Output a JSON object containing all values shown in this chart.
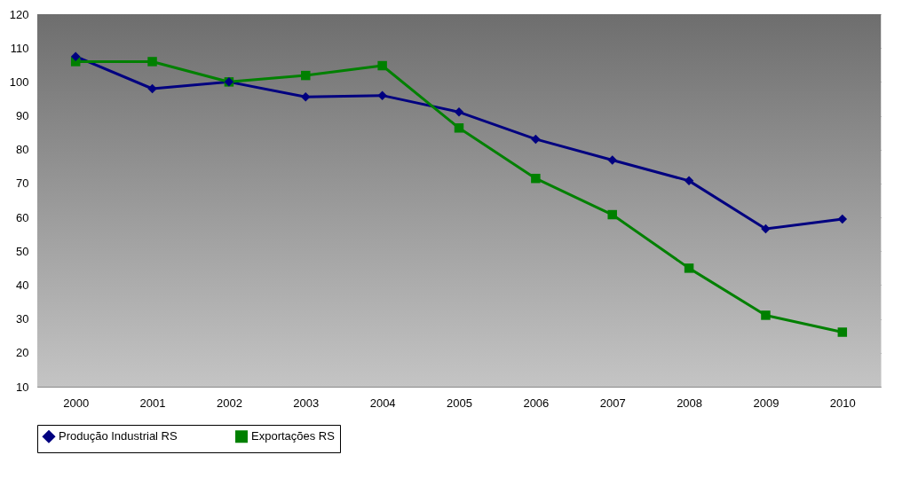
{
  "chart_data": {
    "type": "line",
    "categories": [
      "2000",
      "2001",
      "2002",
      "2003",
      "2004",
      "2005",
      "2006",
      "2007",
      "2008",
      "2009",
      "2010"
    ],
    "series": [
      {
        "name": "Produção Industrial RS",
        "color": "#000080",
        "marker": "diamond",
        "values": [
          107.5,
          98,
          100,
          95.6,
          96,
          91.1,
          83.1,
          76.9,
          70.8,
          56.6,
          59.5
        ]
      },
      {
        "name": "Exportações RS",
        "color": "#008000",
        "marker": "square",
        "values": [
          106,
          106,
          100,
          101.9,
          104.8,
          86.4,
          71.5,
          60.8,
          45,
          31.1,
          26.1
        ]
      }
    ],
    "ylim": [
      10,
      120
    ],
    "yticks": [
      10,
      20,
      30,
      40,
      50,
      60,
      70,
      80,
      90,
      100,
      110,
      120
    ],
    "grid": "y",
    "legend": "bottom",
    "line_style": "solid"
  }
}
